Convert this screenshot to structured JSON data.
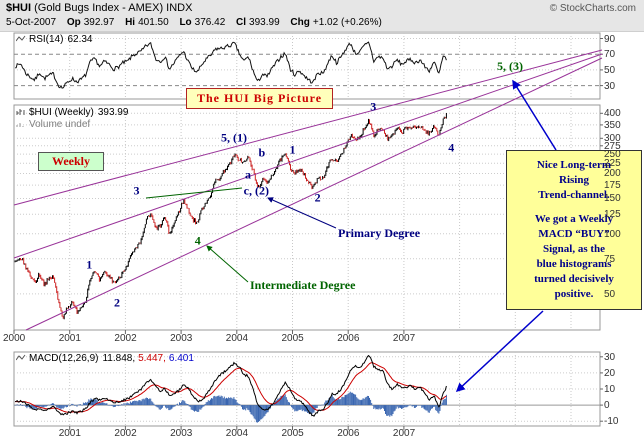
{
  "header": {
    "symbol": "$HUI",
    "title": " (Gold Bugs Index - AMEX) INDX",
    "source": "© StockCharts.com",
    "date": "5-Oct-2007",
    "quote": [
      {
        "l": "Op",
        "v": "392.97"
      },
      {
        "l": "Hi",
        "v": "401.50"
      },
      {
        "l": "Lo",
        "v": "376.42"
      },
      {
        "l": "Cl",
        "v": "393.99"
      },
      {
        "l": "Chg",
        "v": "+1.02 (+0.26%)"
      }
    ]
  },
  "rsi_panel": {
    "label": "RSI(14)",
    "value": "62.34",
    "ticks": [
      90,
      70,
      50,
      30
    ]
  },
  "main_panel": {
    "label": "$HUI (Weekly)",
    "value": "393.99",
    "volume_label": "Volume undef",
    "ticks": [
      400,
      350,
      300,
      275,
      250,
      225,
      200,
      175,
      150,
      125,
      100,
      75,
      50
    ],
    "years": [
      2000,
      2001,
      2002,
      2003,
      2004,
      2005,
      2006,
      2007
    ]
  },
  "macd_panel": {
    "label": "MACD(12,26,9)",
    "v1": "11.848,",
    "v2": "5.447,",
    "v3": "6.401",
    "ticks": [
      30,
      20,
      10,
      0,
      -10
    ],
    "years": [
      2001,
      2002,
      2003,
      2004,
      2005,
      2006,
      2007
    ]
  },
  "annotations": {
    "big_picture": "The HUI Big Picture",
    "weekly": "Weekly",
    "primary_degree": "Primary Degree",
    "intermediate_degree": "Intermediate Degree",
    "top_right_target": "5, (3)",
    "note_lines": [
      "Nice Long-term",
      "Rising",
      "Trend-channel.",
      "",
      "We got a Weekly",
      "MACD “BUY”",
      "Signal, as the",
      "blue histograms",
      "turned decisively",
      "positive."
    ],
    "wave_labels": [
      {
        "text": "1",
        "year": 2001.35,
        "price": 70,
        "color": "#000080"
      },
      {
        "text": "2",
        "year": 2001.85,
        "price": 45,
        "color": "#000080"
      },
      {
        "text": "3",
        "year": 2002.2,
        "price": 163,
        "color": "#000080"
      },
      {
        "text": "4",
        "year": 2003.3,
        "price": 92,
        "color": "#006400"
      },
      {
        "text": "5, (1)",
        "year": 2003.95,
        "price": 300,
        "color": "#000080"
      },
      {
        "text": "b",
        "year": 2004.45,
        "price": 252,
        "color": "#000080"
      },
      {
        "text": "a",
        "year": 2004.2,
        "price": 196,
        "color": "#000080"
      },
      {
        "text": "c, (2)",
        "year": 2004.35,
        "price": 163,
        "color": "#000080"
      },
      {
        "text": "1",
        "year": 2005.0,
        "price": 262,
        "color": "#000080"
      },
      {
        "text": "2",
        "year": 2005.45,
        "price": 150,
        "color": "#000080"
      },
      {
        "text": "3",
        "year": 2006.45,
        "price": 432,
        "color": "#000080"
      },
      {
        "text": "4",
        "year": 2007.85,
        "price": 268,
        "color": "#000080"
      }
    ]
  },
  "colors": {
    "up_bar": "#000000",
    "down_bar": "#cc2222",
    "rsi_line": "#111111",
    "macd_line": "#000000",
    "signal_line": "#cc0000",
    "histogram": "#3a66b0",
    "channel": "#993399",
    "green": "#006400",
    "navy": "#000080",
    "arrow_blue": "#0000cc",
    "note_bg": "#ffff99",
    "note_text": "#00008b"
  },
  "chart_data": {
    "type": "ohlc-weekly-with-indicators",
    "title": "The HUI Big Picture",
    "x_unit": "decimal_year",
    "x_range": [
      2000.0,
      2007.78
    ],
    "price_scale": "log",
    "price_axis_ticks": [
      400,
      350,
      300,
      275,
      250,
      225,
      200,
      175,
      150,
      125,
      100,
      75,
      50
    ],
    "rsi_axis_ticks": [
      90,
      70,
      50,
      30
    ],
    "macd_axis_ticks": [
      30,
      20,
      10,
      0,
      -10
    ],
    "series_interval": "monthly_anchors_from_2000-01",
    "price_monthly": [
      72,
      76,
      68,
      62,
      57,
      63,
      56,
      59,
      61,
      46,
      38,
      43,
      45,
      41,
      43,
      47,
      61,
      64,
      58,
      64,
      61,
      57,
      59,
      65,
      71,
      80,
      85,
      93,
      118,
      124,
      106,
      109,
      121,
      99,
      113,
      128,
      147,
      132,
      118,
      113,
      133,
      146,
      159,
      186,
      191,
      211,
      223,
      246,
      236,
      226,
      241,
      206,
      168,
      186,
      179,
      196,
      213,
      236,
      248,
      212,
      203,
      211,
      196,
      179,
      168,
      193,
      189,
      213,
      241,
      226,
      249,
      278,
      311,
      292,
      301,
      341,
      370,
      311,
      336,
      331,
      296,
      306,
      336,
      321,
      336,
      341,
      336,
      346,
      326,
      316,
      346,
      311,
      376,
      394
    ],
    "rsi_monthly": [
      55,
      58,
      46,
      41,
      37,
      47,
      39,
      43,
      45,
      31,
      27,
      34,
      39,
      35,
      38,
      44,
      61,
      64,
      54,
      61,
      57,
      51,
      54,
      59,
      61,
      68,
      71,
      74,
      81,
      83,
      64,
      61,
      67,
      51,
      59,
      67,
      74,
      61,
      51,
      47,
      57,
      64,
      69,
      77,
      77,
      79,
      81,
      84,
      71,
      61,
      67,
      49,
      34,
      45,
      41,
      51,
      59,
      67,
      71,
      51,
      44,
      49,
      43,
      37,
      34,
      47,
      45,
      57,
      69,
      59,
      67,
      77,
      84,
      71,
      73,
      81,
      85,
      61,
      67,
      65,
      51,
      55,
      63,
      57,
      61,
      63,
      59,
      63,
      54,
      49,
      61,
      44,
      68,
      62.34
    ],
    "macd_monthly": [
      2,
      3,
      1,
      -1,
      -3,
      -2,
      -3,
      -2,
      -1,
      -4,
      -6,
      -5,
      -4,
      -5,
      -4,
      -2,
      2,
      4,
      3,
      4,
      3,
      2,
      2,
      3,
      4,
      6,
      8,
      10,
      14,
      16,
      12,
      9,
      10,
      6,
      7,
      9,
      13,
      11,
      6,
      2,
      3,
      7,
      11,
      16,
      19,
      21,
      24,
      26,
      24,
      19,
      18,
      10,
      0,
      -2,
      -3,
      0,
      4,
      10,
      14,
      10,
      4,
      3,
      0,
      -4,
      -7,
      -4,
      -3,
      1,
      7,
      7,
      10,
      15,
      22,
      24,
      23,
      27,
      31,
      24,
      22,
      21,
      13,
      10,
      13,
      11,
      11,
      12,
      10,
      11,
      7,
      3,
      6,
      -2,
      8,
      11.848
    ],
    "last_values": {
      "open": 392.97,
      "high": 401.5,
      "low": 376.42,
      "close": 393.99,
      "rsi": 62.34,
      "macd": 11.848,
      "macd_signal": 5.447,
      "macd_hist": 6.401
    }
  }
}
